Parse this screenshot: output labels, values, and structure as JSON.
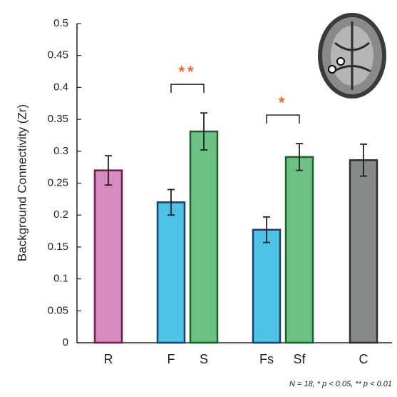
{
  "chart_data": {
    "type": "bar",
    "y_label": "Background Connectivity (Zr)",
    "categories": [
      "R",
      "F",
      "S",
      "Fs",
      "Sf",
      "C"
    ],
    "values": [
      0.27,
      0.22,
      0.331,
      0.177,
      0.291,
      0.286
    ],
    "errors": [
      0.023,
      0.02,
      0.029,
      0.02,
      0.021,
      0.025
    ],
    "colors": [
      "#d88bbf",
      "#4fc3e6",
      "#6cc183",
      "#4fc3e6",
      "#6cc183",
      "#858a87"
    ],
    "edge_colors": [
      "#6b1f4b",
      "#1b3f6a",
      "#1e5e32",
      "#1b3f6a",
      "#1e5e32",
      "#2d302f"
    ],
    "ylim": [
      0,
      0.5
    ],
    "yticks": [
      0,
      0.05,
      0.1,
      0.15,
      0.2,
      0.25,
      0.3,
      0.35,
      0.4,
      0.45,
      0.5
    ],
    "annotations": [
      {
        "text": "**",
        "between": [
          "F",
          "S"
        ],
        "color": "#f26522"
      },
      {
        "text": "*",
        "between": [
          "Fs",
          "Sf"
        ],
        "color": "#f26522"
      }
    ],
    "footnote": "N = 18, * p < 0.05, ** p < 0.01"
  }
}
